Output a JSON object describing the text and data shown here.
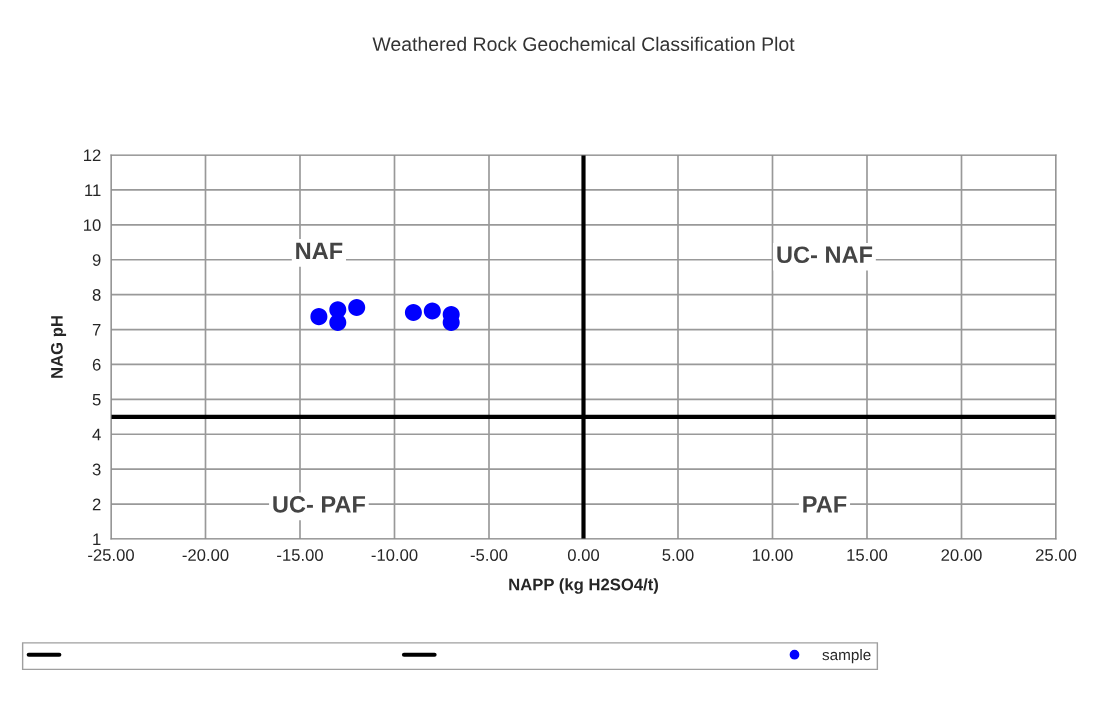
{
  "chart_data": {
    "type": "scatter",
    "title": "Weathered Rock Geochemical Classification Plot",
    "xlabel": "NAPP (kg H2SO4/t)",
    "ylabel": "NAG pH",
    "series": [
      {
        "name": "sample",
        "color": "#0000ff",
        "x": [
          -14,
          -13,
          -13,
          -12,
          -9,
          -8,
          -7,
          -7
        ],
        "values": [
          7.37,
          7.57,
          7.2,
          7.63,
          7.49,
          7.53,
          7.43,
          7.2
        ]
      }
    ],
    "xlim": [
      -25,
      25
    ],
    "ylim": [
      1,
      12
    ],
    "xticks": [
      {
        "value": -25,
        "label": "-25.00"
      },
      {
        "value": -20,
        "label": "-20.00"
      },
      {
        "value": -15,
        "label": "-15.00"
      },
      {
        "value": -10,
        "label": "-10.00"
      },
      {
        "value": -5,
        "label": "-5.00"
      },
      {
        "value": 0,
        "label": "0.00"
      },
      {
        "value": 5,
        "label": "5.00"
      },
      {
        "value": 10,
        "label": "10.00"
      },
      {
        "value": 15,
        "label": "15.00"
      },
      {
        "value": 20,
        "label": "20.00"
      },
      {
        "value": 25,
        "label": "25.00"
      }
    ],
    "yticks": [
      1,
      2,
      3,
      4,
      5,
      6,
      7,
      8,
      9,
      10,
      11,
      12
    ],
    "ref_lines": [
      {
        "axis": "x",
        "value": 0,
        "color": "#000000"
      },
      {
        "axis": "y",
        "value": 4.5,
        "color": "#000000"
      }
    ],
    "annotations": [
      "NAF",
      "UC- NAF",
      "UC- PAF",
      "PAF"
    ],
    "grid": true,
    "marker": "circle",
    "legend": "bottom"
  }
}
